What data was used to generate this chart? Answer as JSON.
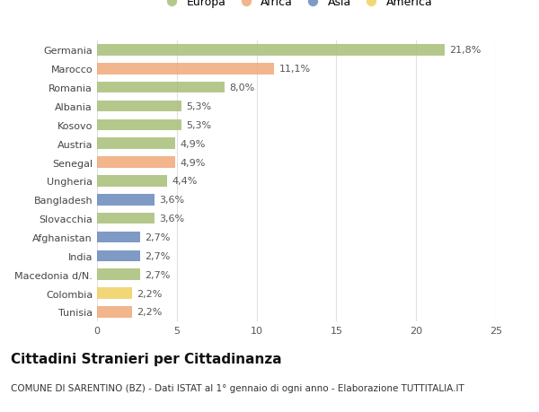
{
  "countries": [
    "Germania",
    "Marocco",
    "Romania",
    "Albania",
    "Kosovo",
    "Austria",
    "Senegal",
    "Ungheria",
    "Bangladesh",
    "Slovacchia",
    "Afghanistan",
    "India",
    "Macedonia d/N.",
    "Colombia",
    "Tunisia"
  ],
  "values": [
    21.8,
    11.1,
    8.0,
    5.3,
    5.3,
    4.9,
    4.9,
    4.4,
    3.6,
    3.6,
    2.7,
    2.7,
    2.7,
    2.2,
    2.2
  ],
  "labels": [
    "21,8%",
    "11,1%",
    "8,0%",
    "5,3%",
    "5,3%",
    "4,9%",
    "4,9%",
    "4,4%",
    "3,6%",
    "3,6%",
    "2,7%",
    "2,7%",
    "2,7%",
    "2,2%",
    "2,2%"
  ],
  "continents": [
    "Europa",
    "Africa",
    "Europa",
    "Europa",
    "Europa",
    "Europa",
    "Africa",
    "Europa",
    "Asia",
    "Europa",
    "Asia",
    "Asia",
    "Europa",
    "America",
    "Africa"
  ],
  "continent_colors": {
    "Europa": "#a8bf78",
    "Africa": "#f0a878",
    "Asia": "#6888bb",
    "America": "#f0d060"
  },
  "legend_order": [
    "Europa",
    "Africa",
    "Asia",
    "America"
  ],
  "title": "Cittadini Stranieri per Cittadinanza",
  "subtitle": "COMUNE DI SARENTINO (BZ) - Dati ISTAT al 1° gennaio di ogni anno - Elaborazione TUTTITALIA.IT",
  "xlim": [
    0,
    25
  ],
  "xticks": [
    0,
    5,
    10,
    15,
    20,
    25
  ],
  "background_color": "#ffffff",
  "grid_color": "#e0e0e0",
  "bar_height": 0.6,
  "label_fontsize": 8,
  "tick_fontsize": 8,
  "title_fontsize": 11,
  "subtitle_fontsize": 7.5
}
